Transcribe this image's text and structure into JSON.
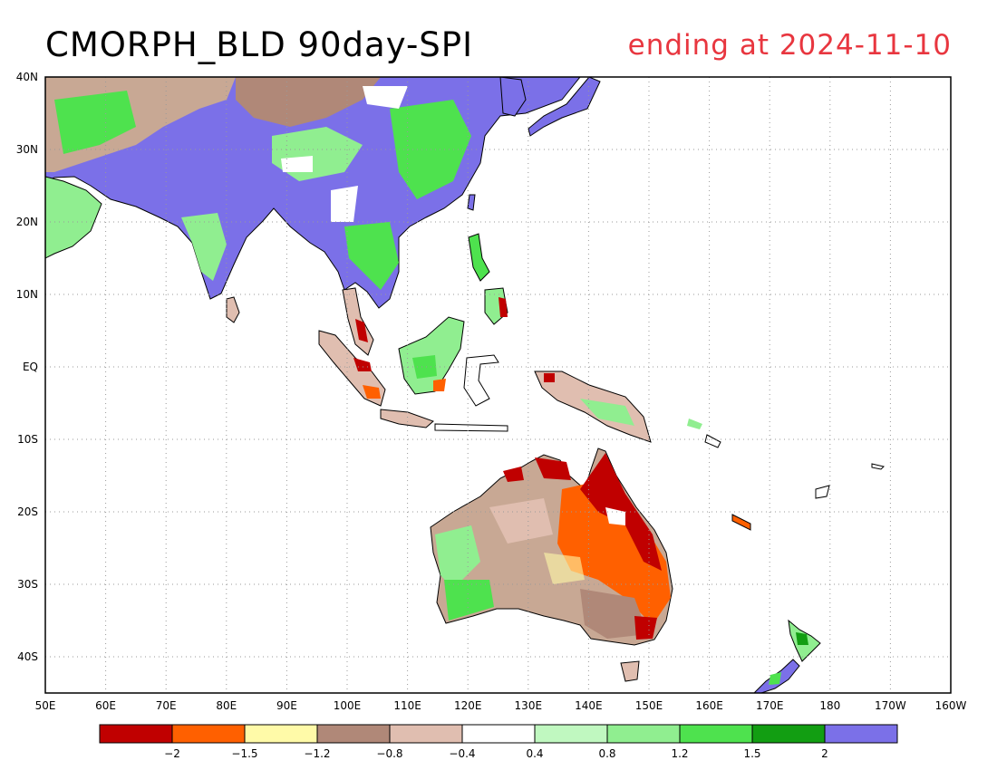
{
  "title": "CMORPH_BLD 90day-SPI",
  "subtitle": "ending at 2024-11-10",
  "colors": {
    "title_right": "#e8363f",
    "land_outline": "#000000",
    "grid": "#9a9a9a"
  },
  "axes": {
    "lon_ticks": [
      "50E",
      "60E",
      "70E",
      "80E",
      "90E",
      "100E",
      "110E",
      "120E",
      "130E",
      "140E",
      "150E",
      "160E",
      "170E",
      "180",
      "170W",
      "160W"
    ],
    "lat_ticks": [
      "40N",
      "30N",
      "20N",
      "10N",
      "EQ",
      "10S",
      "20S",
      "30S",
      "40S"
    ]
  },
  "colorbar": {
    "colors": [
      "#c00000",
      "#ff6000",
      "#fffaa8",
      "#b08878",
      "#e0beb0",
      "#ffffff",
      "#c0f8c0",
      "#90ee90",
      "#4ee24e",
      "#129e12",
      "#7b70e8"
    ],
    "labels": [
      "-2",
      "-1.5",
      "-1.2",
      "-0.8",
      "-0.4",
      "0.4",
      "0.8",
      "1.2",
      "1.5",
      "2"
    ]
  }
}
